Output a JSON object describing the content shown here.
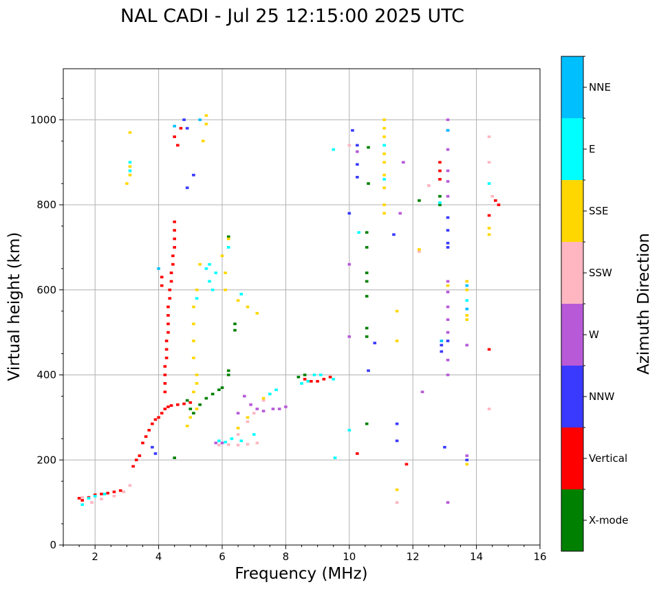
{
  "chart_data": {
    "type": "scatter",
    "title": "NAL CADI - Jul 25 12:15:00 2025 UTC",
    "xlabel": "Frequency (MHz)",
    "ylabel": "Virtual height (km)",
    "xlim": [
      1,
      16
    ],
    "ylim": [
      0,
      1120
    ],
    "xticks": [
      2,
      4,
      6,
      8,
      10,
      12,
      14,
      16
    ],
    "yticks": [
      0,
      200,
      400,
      600,
      800,
      1000
    ],
    "grid": true,
    "colorbar": {
      "label": "Azimuth Direction",
      "categories": [
        {
          "name": "X-mode",
          "color": "#008000"
        },
        {
          "name": "Vertical",
          "color": "#ff0000"
        },
        {
          "name": "NNW",
          "color": "#3a3aff"
        },
        {
          "name": "W",
          "color": "#b85ad8"
        },
        {
          "name": "SSW",
          "color": "#ffb6c1"
        },
        {
          "name": "SSE",
          "color": "#ffd700"
        },
        {
          "name": "E",
          "color": "#00ffff"
        },
        {
          "name": "NNE",
          "color": "#00bfff"
        }
      ]
    },
    "series": [
      {
        "name": "Vertical",
        "points": [
          [
            1.5,
            110
          ],
          [
            1.6,
            105
          ],
          [
            1.8,
            112
          ],
          [
            2.0,
            118
          ],
          [
            2.2,
            120
          ],
          [
            2.4,
            122
          ],
          [
            2.6,
            125
          ],
          [
            2.8,
            128
          ],
          [
            3.2,
            185
          ],
          [
            3.3,
            200
          ],
          [
            3.4,
            210
          ],
          [
            3.5,
            240
          ],
          [
            3.6,
            255
          ],
          [
            3.7,
            270
          ],
          [
            3.8,
            285
          ],
          [
            3.9,
            295
          ],
          [
            4.0,
            300
          ],
          [
            4.1,
            310
          ],
          [
            4.2,
            320
          ],
          [
            4.3,
            325
          ],
          [
            4.4,
            328
          ],
          [
            4.6,
            330
          ],
          [
            4.8,
            332
          ],
          [
            5.0,
            335
          ],
          [
            4.2,
            360
          ],
          [
            4.2,
            380
          ],
          [
            4.2,
            400
          ],
          [
            4.2,
            420
          ],
          [
            4.25,
            440
          ],
          [
            4.25,
            460
          ],
          [
            4.25,
            480
          ],
          [
            4.3,
            500
          ],
          [
            4.3,
            520
          ],
          [
            4.3,
            540
          ],
          [
            4.3,
            560
          ],
          [
            4.35,
            580
          ],
          [
            4.35,
            600
          ],
          [
            4.4,
            620
          ],
          [
            4.4,
            640
          ],
          [
            4.45,
            660
          ],
          [
            4.45,
            680
          ],
          [
            4.5,
            700
          ],
          [
            4.5,
            720
          ],
          [
            4.5,
            740
          ],
          [
            4.5,
            760
          ],
          [
            4.1,
            630
          ],
          [
            4.1,
            610
          ],
          [
            4.7,
            980
          ],
          [
            4.6,
            940
          ],
          [
            4.5,
            960
          ],
          [
            8.6,
            390
          ],
          [
            8.8,
            385
          ],
          [
            9.0,
            385
          ],
          [
            9.2,
            390
          ],
          [
            9.4,
            395
          ],
          [
            12.85,
            900
          ],
          [
            12.85,
            880
          ],
          [
            12.85,
            860
          ],
          [
            14.6,
            810
          ],
          [
            14.7,
            800
          ],
          [
            14.4,
            775
          ],
          [
            14.4,
            460
          ],
          [
            11.8,
            190
          ],
          [
            10.25,
            215
          ]
        ]
      },
      {
        "name": "X-mode",
        "points": [
          [
            4.5,
            205
          ],
          [
            4.9,
            340
          ],
          [
            5.0,
            320
          ],
          [
            5.1,
            310
          ],
          [
            5.3,
            330
          ],
          [
            5.5,
            345
          ],
          [
            5.7,
            355
          ],
          [
            5.9,
            365
          ],
          [
            6.0,
            370
          ],
          [
            6.2,
            410
          ],
          [
            6.2,
            400
          ],
          [
            6.4,
            520
          ],
          [
            6.4,
            505
          ],
          [
            6.2,
            725
          ],
          [
            8.4,
            395
          ],
          [
            8.6,
            400
          ],
          [
            10.6,
            935
          ],
          [
            10.6,
            850
          ],
          [
            10.55,
            735
          ],
          [
            10.55,
            700
          ],
          [
            10.55,
            640
          ],
          [
            10.55,
            620
          ],
          [
            10.55,
            585
          ],
          [
            10.55,
            510
          ],
          [
            10.55,
            490
          ],
          [
            10.55,
            285
          ],
          [
            12.85,
            820
          ],
          [
            12.85,
            800
          ],
          [
            12.2,
            810
          ]
        ]
      },
      {
        "name": "NNW",
        "points": [
          [
            3.8,
            230
          ],
          [
            3.9,
            215
          ],
          [
            4.8,
            1000
          ],
          [
            4.9,
            980
          ],
          [
            5.1,
            870
          ],
          [
            4.9,
            840
          ],
          [
            10.1,
            975
          ],
          [
            10.25,
            940
          ],
          [
            10.25,
            895
          ],
          [
            10.25,
            865
          ],
          [
            10.0,
            780
          ],
          [
            10.6,
            410
          ],
          [
            10.8,
            475
          ],
          [
            11.5,
            285
          ],
          [
            11.5,
            245
          ],
          [
            12.9,
            470
          ],
          [
            12.9,
            455
          ],
          [
            13.1,
            480
          ],
          [
            13.1,
            770
          ],
          [
            13.1,
            740
          ],
          [
            13.1,
            710
          ],
          [
            13.1,
            700
          ],
          [
            13.0,
            230
          ],
          [
            13.7,
            200
          ],
          [
            13.1,
            975
          ],
          [
            11.4,
            730
          ]
        ]
      },
      {
        "name": "W",
        "points": [
          [
            6.7,
            350
          ],
          [
            6.9,
            330
          ],
          [
            7.1,
            320
          ],
          [
            7.3,
            315
          ],
          [
            7.6,
            320
          ],
          [
            7.8,
            320
          ],
          [
            8.0,
            325
          ],
          [
            6.5,
            310
          ],
          [
            5.8,
            240
          ],
          [
            6.0,
            240
          ],
          [
            13.1,
            1000
          ],
          [
            13.1,
            930
          ],
          [
            13.1,
            880
          ],
          [
            13.1,
            855
          ],
          [
            13.1,
            820
          ],
          [
            13.1,
            620
          ],
          [
            13.1,
            595
          ],
          [
            13.1,
            560
          ],
          [
            13.1,
            530
          ],
          [
            13.1,
            500
          ],
          [
            13.1,
            435
          ],
          [
            13.1,
            400
          ],
          [
            13.1,
            100
          ],
          [
            13.7,
            470
          ],
          [
            13.7,
            210
          ],
          [
            10.25,
            925
          ],
          [
            10.0,
            660
          ],
          [
            10.0,
            490
          ],
          [
            11.6,
            780
          ],
          [
            11.7,
            900
          ],
          [
            12.3,
            360
          ],
          [
            12.5,
            845
          ]
        ]
      },
      {
        "name": "SSW",
        "points": [
          [
            1.6,
            112
          ],
          [
            1.9,
            100
          ],
          [
            2.2,
            108
          ],
          [
            2.6,
            115
          ],
          [
            2.9,
            125
          ],
          [
            3.1,
            140
          ],
          [
            5.9,
            235
          ],
          [
            6.2,
            236
          ],
          [
            6.5,
            235
          ],
          [
            6.8,
            237
          ],
          [
            7.1,
            240
          ],
          [
            6.5,
            260
          ],
          [
            6.8,
            290
          ],
          [
            7.0,
            310
          ],
          [
            7.3,
            340
          ],
          [
            12.5,
            845
          ],
          [
            12.2,
            690
          ],
          [
            14.4,
            960
          ],
          [
            14.4,
            900
          ],
          [
            14.5,
            820
          ],
          [
            14.4,
            320
          ],
          [
            11.5,
            100
          ],
          [
            10.0,
            940
          ]
        ]
      },
      {
        "name": "SSE",
        "points": [
          [
            3.0,
            850
          ],
          [
            3.1,
            870
          ],
          [
            3.1,
            890
          ],
          [
            3.1,
            970
          ],
          [
            5.5,
            1010
          ],
          [
            5.5,
            990
          ],
          [
            5.4,
            950
          ],
          [
            5.3,
            660
          ],
          [
            5.2,
            600
          ],
          [
            5.1,
            560
          ],
          [
            5.1,
            520
          ],
          [
            5.1,
            480
          ],
          [
            5.1,
            440
          ],
          [
            5.2,
            400
          ],
          [
            5.2,
            380
          ],
          [
            5.1,
            360
          ],
          [
            5.2,
            320
          ],
          [
            5.0,
            300
          ],
          [
            4.9,
            280
          ],
          [
            6.0,
            680
          ],
          [
            6.1,
            640
          ],
          [
            6.1,
            600
          ],
          [
            6.2,
            720
          ],
          [
            6.5,
            575
          ],
          [
            6.8,
            560
          ],
          [
            7.1,
            545
          ],
          [
            6.5,
            275
          ],
          [
            6.8,
            300
          ],
          [
            7.3,
            345
          ],
          [
            11.1,
            1000
          ],
          [
            11.1,
            980
          ],
          [
            11.1,
            960
          ],
          [
            11.1,
            920
          ],
          [
            11.1,
            900
          ],
          [
            11.1,
            870
          ],
          [
            11.1,
            840
          ],
          [
            11.1,
            800
          ],
          [
            11.1,
            780
          ],
          [
            13.7,
            620
          ],
          [
            13.7,
            600
          ],
          [
            13.7,
            540
          ],
          [
            13.7,
            530
          ],
          [
            13.7,
            190
          ],
          [
            14.4,
            730
          ],
          [
            14.4,
            745
          ],
          [
            11.5,
            550
          ],
          [
            11.5,
            480
          ],
          [
            11.5,
            130
          ],
          [
            12.2,
            695
          ],
          [
            13.1,
            610
          ]
        ]
      },
      {
        "name": "E",
        "points": [
          [
            1.6,
            95
          ],
          [
            1.8,
            110
          ],
          [
            2.0,
            115
          ],
          [
            2.3,
            120
          ],
          [
            3.1,
            900
          ],
          [
            3.1,
            880
          ],
          [
            5.5,
            650
          ],
          [
            5.6,
            620
          ],
          [
            5.7,
            600
          ],
          [
            5.8,
            640
          ],
          [
            5.6,
            660
          ],
          [
            5.2,
            580
          ],
          [
            5.9,
            245
          ],
          [
            6.1,
            242
          ],
          [
            6.3,
            250
          ],
          [
            6.6,
            245
          ],
          [
            7.0,
            260
          ],
          [
            7.5,
            355
          ],
          [
            7.7,
            365
          ],
          [
            8.5,
            380
          ],
          [
            8.7,
            385
          ],
          [
            8.9,
            400
          ],
          [
            9.5,
            390
          ],
          [
            9.1,
            400
          ],
          [
            10.3,
            735
          ],
          [
            10.0,
            270
          ],
          [
            9.55,
            205
          ],
          [
            9.5,
            930
          ],
          [
            11.1,
            940
          ],
          [
            11.1,
            860
          ],
          [
            14.4,
            850
          ],
          [
            12.85,
            805
          ],
          [
            13.7,
            575
          ],
          [
            6.2,
            700
          ],
          [
            6.6,
            590
          ]
        ]
      },
      {
        "name": "NNE",
        "points": [
          [
            4.0,
            650
          ],
          [
            4.5,
            985
          ],
          [
            5.3,
            1000
          ],
          [
            12.9,
            480
          ],
          [
            13.1,
            975
          ],
          [
            13.7,
            555
          ],
          [
            13.7,
            610
          ]
        ]
      }
    ]
  }
}
